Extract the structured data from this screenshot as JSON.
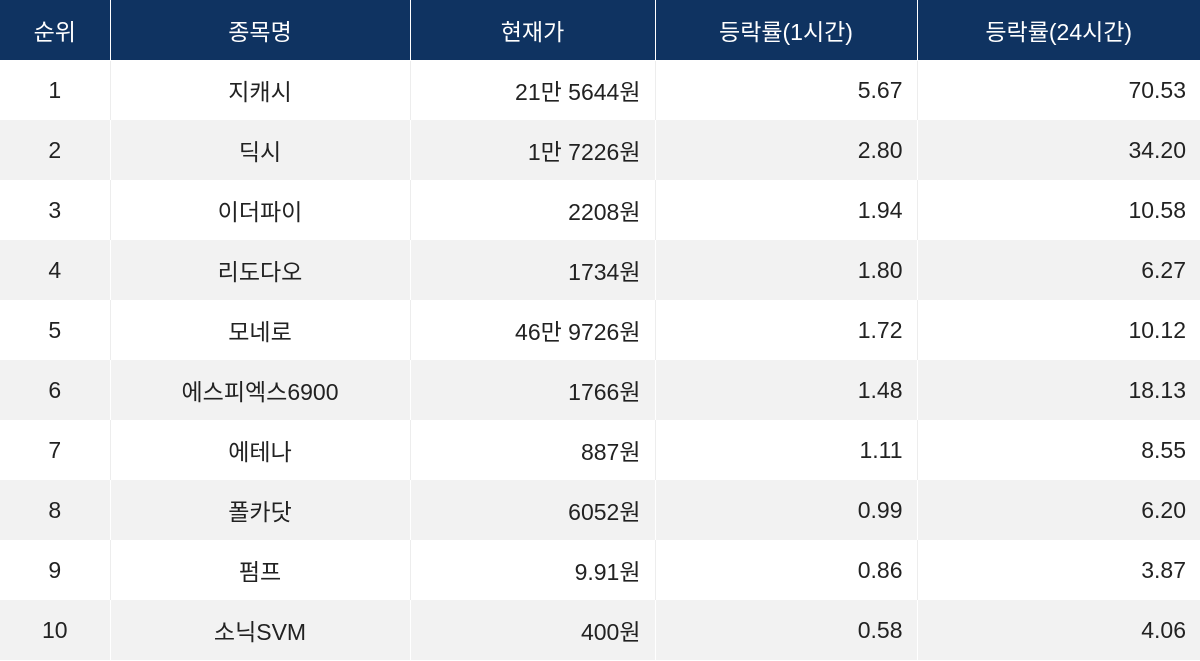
{
  "table": {
    "header": [
      "순위",
      "종목명",
      "현재가",
      "등락률(1시간)",
      "등락률(24시간)"
    ],
    "rows": [
      [
        "1",
        "지캐시",
        "21만 5644원",
        "5.67",
        "70.53"
      ],
      [
        "2",
        "딕시",
        "1만 7226원",
        "2.80",
        "34.20"
      ],
      [
        "3",
        "이더파이",
        "2208원",
        "1.94",
        "10.58"
      ],
      [
        "4",
        "리도다오",
        "1734원",
        "1.80",
        "6.27"
      ],
      [
        "5",
        "모네로",
        "46만 9726원",
        "1.72",
        "10.12"
      ],
      [
        "6",
        "에스피엑스6900",
        "1766원",
        "1.48",
        "18.13"
      ],
      [
        "7",
        "에테나",
        "887원",
        "1.11",
        "8.55"
      ],
      [
        "8",
        "폴카닷",
        "6052원",
        "0.99",
        "6.20"
      ],
      [
        "9",
        "펌프",
        "9.91원",
        "0.86",
        "3.87"
      ],
      [
        "10",
        "소닉SVM",
        "400원",
        "0.58",
        "4.06"
      ]
    ]
  }
}
